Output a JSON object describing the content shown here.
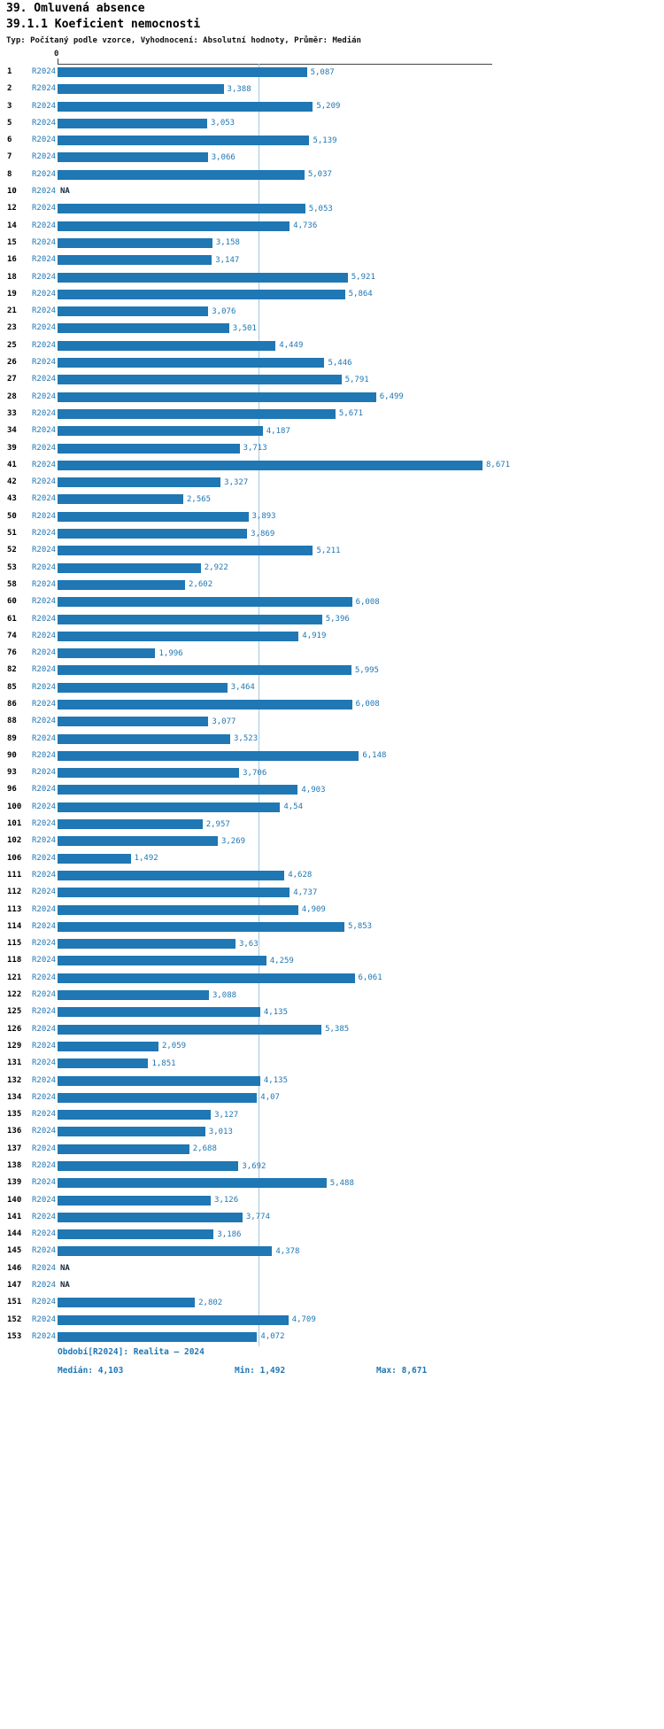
{
  "header": {
    "title": "39. Omluvená absence",
    "subtitle": "39.1.1 Koeficient nemocnosti",
    "meta": "Typ: Počítaný podle vzorce, Vyhodnocení: Absolutní hodnoty, Průměr: Medián"
  },
  "chart_data": {
    "type": "bar",
    "orientation": "horizontal",
    "title": "39.1.1 Koeficient nemocnosti",
    "series_label": "R2024",
    "axis_zero_label": "0",
    "xlim": [
      0,
      8.671
    ],
    "median": 4.103,
    "min": 1.492,
    "max": 8.671,
    "bar_color": "#1f77b4",
    "median_line_color": "#a5c8e1",
    "na_label": "NA",
    "rows": [
      {
        "id": "1",
        "value": 5.087,
        "label": "5,087"
      },
      {
        "id": "2",
        "value": 3.388,
        "label": "3,388"
      },
      {
        "id": "3",
        "value": 5.209,
        "label": "5,209"
      },
      {
        "id": "5",
        "value": 3.053,
        "label": "3,053"
      },
      {
        "id": "6",
        "value": 5.139,
        "label": "5,139"
      },
      {
        "id": "7",
        "value": 3.066,
        "label": "3,066"
      },
      {
        "id": "8",
        "value": 5.037,
        "label": "5,037"
      },
      {
        "id": "10",
        "value": null,
        "label": "NA"
      },
      {
        "id": "12",
        "value": 5.053,
        "label": "5,053"
      },
      {
        "id": "14",
        "value": 4.736,
        "label": "4,736"
      },
      {
        "id": "15",
        "value": 3.158,
        "label": "3,158"
      },
      {
        "id": "16",
        "value": 3.147,
        "label": "3,147"
      },
      {
        "id": "18",
        "value": 5.921,
        "label": "5,921"
      },
      {
        "id": "19",
        "value": 5.864,
        "label": "5,864"
      },
      {
        "id": "21",
        "value": 3.076,
        "label": "3,076"
      },
      {
        "id": "23",
        "value": 3.501,
        "label": "3,501"
      },
      {
        "id": "25",
        "value": 4.449,
        "label": "4,449"
      },
      {
        "id": "26",
        "value": 5.446,
        "label": "5,446"
      },
      {
        "id": "27",
        "value": 5.791,
        "label": "5,791"
      },
      {
        "id": "28",
        "value": 6.499,
        "label": "6,499"
      },
      {
        "id": "33",
        "value": 5.671,
        "label": "5,671"
      },
      {
        "id": "34",
        "value": 4.187,
        "label": "4,187"
      },
      {
        "id": "39",
        "value": 3.713,
        "label": "3,713"
      },
      {
        "id": "41",
        "value": 8.671,
        "label": "8,671"
      },
      {
        "id": "42",
        "value": 3.327,
        "label": "3,327"
      },
      {
        "id": "43",
        "value": 2.565,
        "label": "2,565"
      },
      {
        "id": "50",
        "value": 3.893,
        "label": "3,893"
      },
      {
        "id": "51",
        "value": 3.869,
        "label": "3,869"
      },
      {
        "id": "52",
        "value": 5.211,
        "label": "5,211"
      },
      {
        "id": "53",
        "value": 2.922,
        "label": "2,922"
      },
      {
        "id": "58",
        "value": 2.602,
        "label": "2,602"
      },
      {
        "id": "60",
        "value": 6.008,
        "label": "6,008"
      },
      {
        "id": "61",
        "value": 5.396,
        "label": "5,396"
      },
      {
        "id": "74",
        "value": 4.919,
        "label": "4,919"
      },
      {
        "id": "76",
        "value": 1.996,
        "label": "1,996"
      },
      {
        "id": "82",
        "value": 5.995,
        "label": "5,995"
      },
      {
        "id": "85",
        "value": 3.464,
        "label": "3,464"
      },
      {
        "id": "86",
        "value": 6.008,
        "label": "6,008"
      },
      {
        "id": "88",
        "value": 3.077,
        "label": "3,077"
      },
      {
        "id": "89",
        "value": 3.523,
        "label": "3,523"
      },
      {
        "id": "90",
        "value": 6.148,
        "label": "6,148"
      },
      {
        "id": "93",
        "value": 3.706,
        "label": "3,706"
      },
      {
        "id": "96",
        "value": 4.903,
        "label": "4,903"
      },
      {
        "id": "100",
        "value": 4.54,
        "label": "4,54"
      },
      {
        "id": "101",
        "value": 2.957,
        "label": "2,957"
      },
      {
        "id": "102",
        "value": 3.269,
        "label": "3,269"
      },
      {
        "id": "106",
        "value": 1.492,
        "label": "1,492"
      },
      {
        "id": "111",
        "value": 4.628,
        "label": "4,628"
      },
      {
        "id": "112",
        "value": 4.737,
        "label": "4,737"
      },
      {
        "id": "113",
        "value": 4.909,
        "label": "4,909"
      },
      {
        "id": "114",
        "value": 5.853,
        "label": "5,853"
      },
      {
        "id": "115",
        "value": 3.63,
        "label": "3,63"
      },
      {
        "id": "118",
        "value": 4.259,
        "label": "4,259"
      },
      {
        "id": "121",
        "value": 6.061,
        "label": "6,061"
      },
      {
        "id": "122",
        "value": 3.088,
        "label": "3,088"
      },
      {
        "id": "125",
        "value": 4.135,
        "label": "4,135"
      },
      {
        "id": "126",
        "value": 5.385,
        "label": "5,385"
      },
      {
        "id": "129",
        "value": 2.059,
        "label": "2,059"
      },
      {
        "id": "131",
        "value": 1.851,
        "label": "1,851"
      },
      {
        "id": "132",
        "value": 4.135,
        "label": "4,135"
      },
      {
        "id": "134",
        "value": 4.07,
        "label": "4,07"
      },
      {
        "id": "135",
        "value": 3.127,
        "label": "3,127"
      },
      {
        "id": "136",
        "value": 3.013,
        "label": "3,013"
      },
      {
        "id": "137",
        "value": 2.688,
        "label": "2,688"
      },
      {
        "id": "138",
        "value": 3.692,
        "label": "3,692"
      },
      {
        "id": "139",
        "value": 5.488,
        "label": "5,488"
      },
      {
        "id": "140",
        "value": 3.126,
        "label": "3,126"
      },
      {
        "id": "141",
        "value": 3.774,
        "label": "3,774"
      },
      {
        "id": "144",
        "value": 3.186,
        "label": "3,186"
      },
      {
        "id": "145",
        "value": 4.378,
        "label": "4,378"
      },
      {
        "id": "146",
        "value": null,
        "label": "NA"
      },
      {
        "id": "147",
        "value": null,
        "label": "NA"
      },
      {
        "id": "151",
        "value": 2.802,
        "label": "2,802"
      },
      {
        "id": "152",
        "value": 4.709,
        "label": "4,709"
      },
      {
        "id": "153",
        "value": 4.072,
        "label": "4,072"
      }
    ],
    "footer": {
      "period": "Období[R2024]: Realita – 2024",
      "median_label": "Medián: 4,103",
      "min_label": "Min: 1,492",
      "max_label": "Max: 8,671"
    }
  }
}
